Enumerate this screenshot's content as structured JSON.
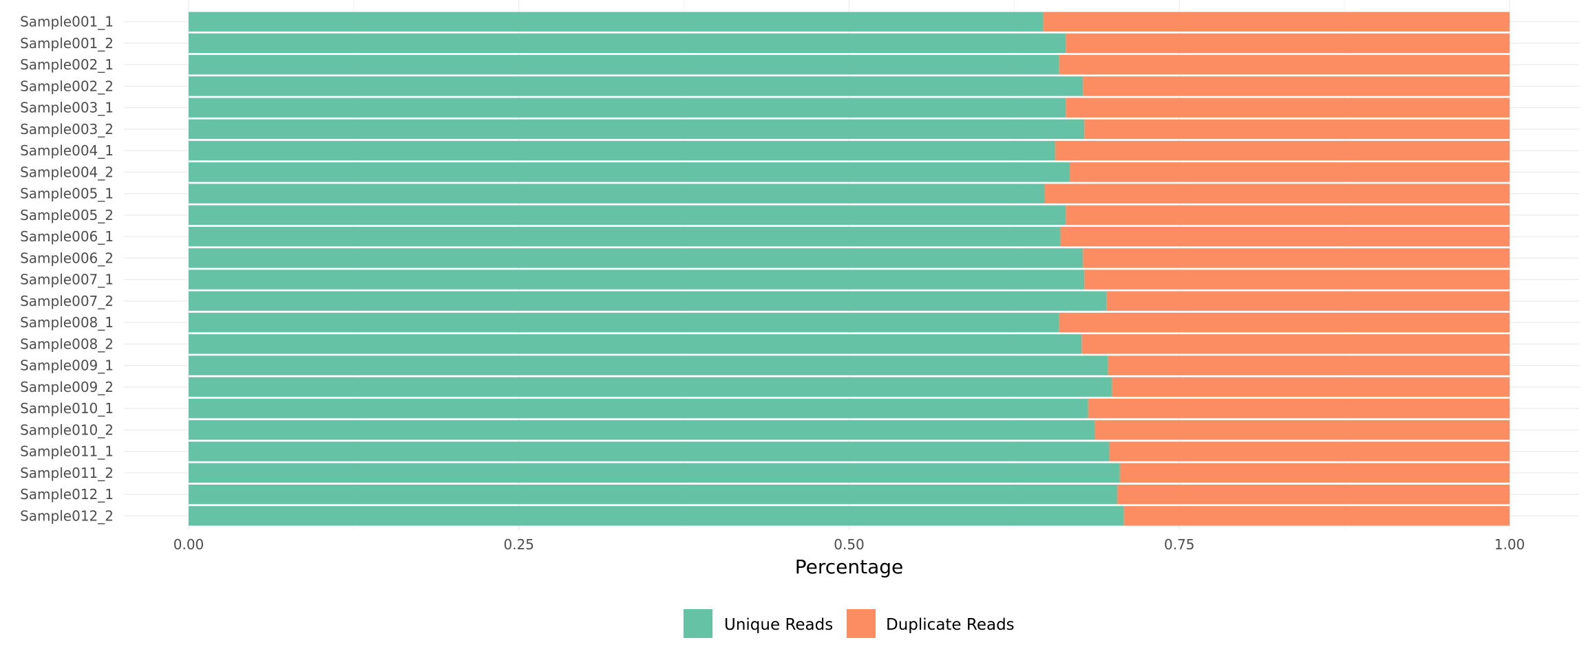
{
  "chart_data": {
    "type": "bar",
    "orientation": "horizontal",
    "stacked": true,
    "xlabel": "Percentage",
    "ylabel": "",
    "xlim": [
      0,
      1
    ],
    "x_ticks": [
      "0.00",
      "0.25",
      "0.50",
      "0.75",
      "1.00"
    ],
    "x_tick_values": [
      0,
      0.25,
      0.5,
      0.75,
      1.0
    ],
    "grid": true,
    "legend_position": "bottom",
    "categories": [
      "Sample001_1",
      "Sample001_2",
      "Sample002_1",
      "Sample002_2",
      "Sample003_1",
      "Sample003_2",
      "Sample004_1",
      "Sample004_2",
      "Sample005_1",
      "Sample005_2",
      "Sample006_1",
      "Sample006_2",
      "Sample007_1",
      "Sample007_2",
      "Sample008_1",
      "Sample008_2",
      "Sample009_1",
      "Sample009_2",
      "Sample010_1",
      "Sample010_2",
      "Sample011_1",
      "Sample011_2",
      "Sample012_1",
      "Sample012_2"
    ],
    "series": [
      {
        "name": "Unique Reads",
        "color": "#66c2a5",
        "values": [
          0.647,
          0.664,
          0.659,
          0.677,
          0.664,
          0.678,
          0.656,
          0.667,
          0.648,
          0.664,
          0.66,
          0.677,
          0.678,
          0.695,
          0.659,
          0.676,
          0.696,
          0.699,
          0.681,
          0.686,
          0.697,
          0.705,
          0.703,
          0.708
        ]
      },
      {
        "name": "Duplicate Reads",
        "color": "#fc8d62",
        "values": [
          0.353,
          0.336,
          0.341,
          0.323,
          0.336,
          0.322,
          0.344,
          0.333,
          0.352,
          0.336,
          0.34,
          0.323,
          0.322,
          0.305,
          0.341,
          0.324,
          0.304,
          0.301,
          0.319,
          0.314,
          0.303,
          0.295,
          0.297,
          0.292
        ]
      }
    ]
  }
}
